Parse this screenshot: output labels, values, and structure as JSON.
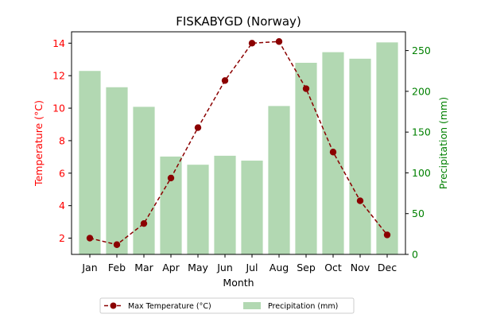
{
  "chart_data": {
    "type": "bar+line",
    "title": "FISKABYGD (Norway)",
    "xlabel": "Month",
    "ylabel_left": "Temperature (°C)",
    "ylabel_right": "Precipitation (mm)",
    "categories": [
      "Jan",
      "Feb",
      "Mar",
      "Apr",
      "May",
      "Jun",
      "Jul",
      "Aug",
      "Sep",
      "Oct",
      "Nov",
      "Dec"
    ],
    "series": [
      {
        "name": "Max Temperature (°C)",
        "type": "line",
        "axis": "left",
        "color": "#8b0000",
        "values": [
          2.0,
          1.6,
          2.9,
          5.7,
          8.8,
          11.7,
          14.0,
          14.1,
          11.2,
          7.3,
          4.3,
          2.2
        ]
      },
      {
        "name": "Precipitation (mm)",
        "type": "bar",
        "axis": "right",
        "color": "#b2d8b2",
        "values": [
          225,
          205,
          181,
          120,
          110,
          121,
          115,
          182,
          235,
          248,
          240,
          260
        ]
      }
    ],
    "ylim_left": [
      1.0,
      14.7
    ],
    "yticks_left": [
      2,
      4,
      6,
      8,
      10,
      12,
      14
    ],
    "ylim_right": [
      0,
      273
    ],
    "yticks_right": [
      0,
      50,
      100,
      150,
      200,
      250
    ],
    "left_axis_color": "#ff0000",
    "right_axis_color": "#008000",
    "legend_position": "bottom-center",
    "grid": false
  }
}
